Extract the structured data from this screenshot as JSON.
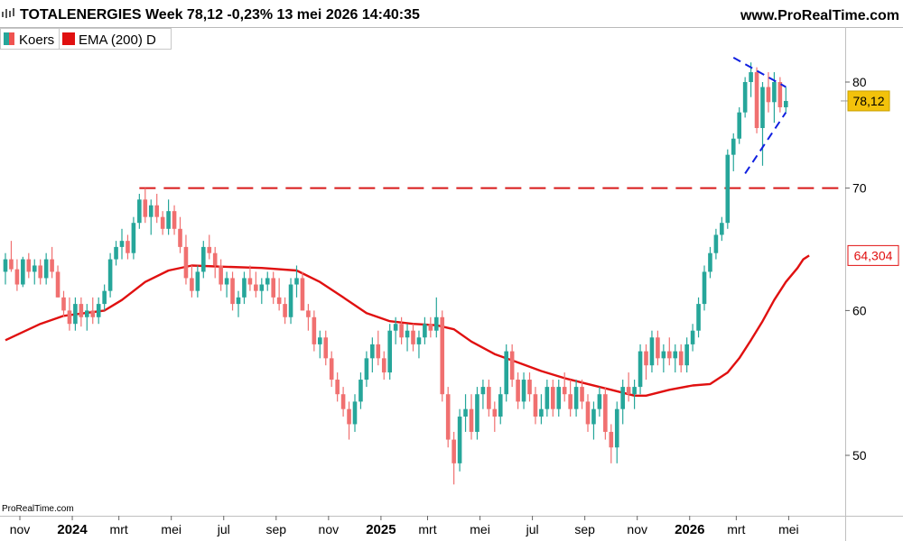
{
  "header": {
    "title": "TOTALENERGIES Week 78,12 -0,23% 13 mei 2026 14:40:35",
    "site": "www.ProRealTime.com"
  },
  "watermark": "ProRealTime.com",
  "legend": [
    {
      "label": "Koers",
      "color_up": "#26a69a",
      "color_down": "#ef5350"
    },
    {
      "label": "EMA (200) D",
      "color": "#e01010"
    }
  ],
  "colors": {
    "up": "#26a69a",
    "down": "#f07070",
    "ema": "#e01010",
    "resistance": "#d81818",
    "trendline": "#1020e0",
    "price_badge_bg": "#f3c20b",
    "ema_badge_border": "#e01010"
  },
  "chart_data": {
    "type": "candlestick",
    "y_scale": "log",
    "ylim": [
      46.5,
      88
    ],
    "yticks": [
      "80",
      "70",
      "60",
      "50"
    ],
    "ytick_values": [
      80,
      70,
      60,
      50
    ],
    "xticks": [
      {
        "label": "nov",
        "bold": false,
        "index": 0
      },
      {
        "label": "2024",
        "bold": true,
        "index": 9
      },
      {
        "label": "mrt",
        "bold": false,
        "index": 17
      },
      {
        "label": "mei",
        "bold": false,
        "index": 26
      },
      {
        "label": "jul",
        "bold": false,
        "index": 35
      },
      {
        "label": "sep",
        "bold": false,
        "index": 44
      },
      {
        "label": "nov",
        "bold": false,
        "index": 53
      },
      {
        "label": "2025",
        "bold": true,
        "index": 62
      },
      {
        "label": "mrt",
        "bold": false,
        "index": 70
      },
      {
        "label": "mei",
        "bold": false,
        "index": 79
      },
      {
        "label": "jul",
        "bold": false,
        "index": 88
      },
      {
        "label": "sep",
        "bold": false,
        "index": 97
      },
      {
        "label": "nov",
        "bold": false,
        "index": 106
      },
      {
        "label": "2026",
        "bold": true,
        "index": 115
      },
      {
        "label": "mrt",
        "bold": false,
        "index": 123
      },
      {
        "label": "mei",
        "bold": false,
        "index": 132
      }
    ],
    "last_price": "78,12",
    "last_price_value": 78.12,
    "ema_last": "64,304",
    "ema_last_value": 64.304,
    "resistance_level": 70,
    "resistance_start_index": 23,
    "triangle": {
      "upper": [
        [
          125,
          82.5
        ],
        [
          134,
          79.5
        ]
      ],
      "lower": [
        [
          127,
          71.3
        ],
        [
          134,
          77.0
        ]
      ]
    },
    "candles": [
      [
        63.0,
        64.5,
        62.0,
        64.0
      ],
      [
        64.0,
        65.5,
        63.0,
        63.2
      ],
      [
        63.2,
        64.0,
        61.5,
        62.0
      ],
      [
        62.0,
        64.2,
        61.8,
        64.0
      ],
      [
        64.0,
        64.5,
        62.5,
        63.0
      ],
      [
        63.0,
        64.0,
        62.0,
        63.5
      ],
      [
        63.5,
        64.0,
        62.0,
        62.5
      ],
      [
        62.5,
        64.5,
        62.0,
        64.0
      ],
      [
        64.0,
        65.0,
        62.5,
        63.0
      ],
      [
        63.0,
        63.5,
        61.0,
        61.0
      ],
      [
        61.0,
        61.5,
        59.5,
        60.0
      ],
      [
        60.0,
        61.0,
        58.5,
        59.0
      ],
      [
        59.0,
        61.0,
        58.5,
        60.5
      ],
      [
        60.5,
        61.0,
        58.8,
        59.5
      ],
      [
        59.5,
        60.5,
        58.5,
        60.0
      ],
      [
        60.0,
        61.0,
        59.0,
        59.5
      ],
      [
        59.5,
        61.0,
        59.0,
        60.5
      ],
      [
        60.5,
        62.0,
        60.0,
        61.5
      ],
      [
        61.5,
        64.5,
        61.0,
        64.0
      ],
      [
        64.0,
        65.5,
        63.5,
        65.0
      ],
      [
        65.0,
        66.5,
        64.0,
        65.5
      ],
      [
        65.5,
        66.0,
        64.0,
        64.5
      ],
      [
        64.5,
        67.5,
        64.0,
        67.0
      ],
      [
        67.0,
        69.5,
        66.5,
        69.0
      ],
      [
        69.0,
        70.0,
        67.0,
        67.5
      ],
      [
        67.5,
        69.0,
        66.0,
        68.5
      ],
      [
        68.5,
        69.5,
        67.0,
        67.5
      ],
      [
        67.5,
        68.0,
        66.0,
        66.5
      ],
      [
        66.5,
        69.0,
        66.0,
        68.0
      ],
      [
        68.0,
        68.5,
        66.0,
        66.5
      ],
      [
        66.5,
        67.5,
        64.5,
        65.0
      ],
      [
        65.0,
        66.0,
        62.0,
        62.5
      ],
      [
        62.5,
        63.5,
        61.0,
        61.5
      ],
      [
        61.5,
        63.5,
        61.0,
        63.0
      ],
      [
        63.0,
        65.5,
        62.5,
        65.0
      ],
      [
        65.0,
        66.0,
        64.0,
        64.5
      ],
      [
        64.5,
        65.0,
        62.5,
        63.5
      ],
      [
        63.5,
        64.0,
        61.5,
        62.0
      ],
      [
        62.0,
        63.0,
        61.0,
        62.5
      ],
      [
        62.5,
        63.0,
        60.0,
        60.5
      ],
      [
        60.5,
        61.5,
        59.5,
        61.0
      ],
      [
        61.0,
        63.0,
        60.5,
        62.5
      ],
      [
        62.5,
        63.5,
        61.5,
        62.0
      ],
      [
        62.0,
        63.0,
        61.0,
        61.5
      ],
      [
        61.5,
        62.5,
        60.5,
        62.0
      ],
      [
        62.0,
        63.0,
        61.5,
        62.5
      ],
      [
        62.5,
        63.0,
        60.5,
        61.0
      ],
      [
        61.0,
        62.5,
        60.0,
        60.5
      ],
      [
        60.5,
        61.0,
        59.0,
        59.5
      ],
      [
        59.5,
        62.5,
        59.0,
        62.0
      ],
      [
        62.0,
        63.5,
        61.0,
        62.5
      ],
      [
        62.5,
        63.0,
        60.0,
        60.0
      ],
      [
        60.0,
        60.5,
        58.5,
        59.5
      ],
      [
        59.5,
        60.0,
        57.0,
        57.5
      ],
      [
        57.5,
        58.5,
        56.5,
        58.0
      ],
      [
        58.0,
        58.5,
        56.0,
        56.5
      ],
      [
        56.5,
        57.0,
        54.5,
        55.0
      ],
      [
        55.0,
        55.5,
        53.5,
        54.0
      ],
      [
        54.0,
        54.5,
        52.5,
        53.0
      ],
      [
        53.0,
        53.5,
        51.0,
        52.0
      ],
      [
        52.0,
        54.0,
        51.5,
        53.5
      ],
      [
        53.5,
        55.5,
        53.0,
        55.0
      ],
      [
        55.0,
        57.0,
        54.5,
        56.5
      ],
      [
        56.5,
        58.0,
        55.5,
        57.5
      ],
      [
        57.5,
        58.5,
        56.0,
        56.5
      ],
      [
        56.5,
        57.0,
        55.0,
        55.5
      ],
      [
        55.5,
        59.0,
        55.0,
        58.5
      ],
      [
        58.5,
        59.5,
        57.5,
        59.0
      ],
      [
        59.0,
        59.5,
        57.5,
        58.0
      ],
      [
        58.0,
        59.0,
        57.0,
        58.5
      ],
      [
        58.5,
        59.0,
        57.0,
        57.5
      ],
      [
        57.5,
        58.5,
        56.5,
        58.0
      ],
      [
        58.0,
        59.5,
        57.5,
        59.0
      ],
      [
        59.0,
        59.5,
        58.0,
        58.5
      ],
      [
        58.5,
        61.0,
        58.0,
        59.5
      ],
      [
        59.5,
        60.0,
        53.5,
        54.0
      ],
      [
        54.0,
        54.5,
        50.5,
        51.0
      ],
      [
        51.0,
        51.5,
        48.2,
        49.5
      ],
      [
        49.5,
        53.0,
        49.0,
        52.5
      ],
      [
        52.5,
        54.0,
        51.5,
        53.0
      ],
      [
        53.0,
        54.0,
        51.0,
        51.5
      ],
      [
        51.5,
        54.5,
        51.0,
        54.0
      ],
      [
        54.0,
        55.0,
        53.0,
        54.5
      ],
      [
        54.5,
        55.0,
        52.5,
        53.0
      ],
      [
        53.0,
        53.5,
        51.5,
        52.5
      ],
      [
        52.5,
        54.5,
        52.0,
        54.0
      ],
      [
        54.0,
        57.5,
        53.5,
        57.0
      ],
      [
        57.0,
        57.5,
        54.5,
        55.0
      ],
      [
        55.0,
        55.5,
        53.0,
        53.5
      ],
      [
        53.5,
        55.5,
        53.0,
        55.0
      ],
      [
        55.0,
        55.5,
        53.5,
        54.0
      ],
      [
        54.0,
        54.5,
        52.0,
        52.5
      ],
      [
        52.5,
        54.0,
        52.0,
        53.0
      ],
      [
        53.0,
        55.0,
        52.5,
        54.5
      ],
      [
        54.5,
        55.0,
        52.5,
        53.0
      ],
      [
        53.0,
        55.0,
        52.5,
        54.5
      ],
      [
        54.5,
        55.5,
        53.5,
        54.0
      ],
      [
        54.0,
        55.0,
        52.5,
        53.0
      ],
      [
        53.0,
        55.0,
        52.5,
        54.5
      ],
      [
        54.5,
        55.0,
        53.0,
        53.5
      ],
      [
        53.5,
        54.0,
        51.5,
        52.0
      ],
      [
        52.0,
        53.5,
        51.0,
        53.0
      ],
      [
        53.0,
        54.5,
        52.5,
        54.0
      ],
      [
        54.0,
        54.5,
        51.0,
        51.5
      ],
      [
        51.5,
        52.0,
        49.5,
        50.5
      ],
      [
        50.5,
        53.5,
        49.5,
        53.0
      ],
      [
        53.0,
        55.0,
        52.0,
        54.5
      ],
      [
        54.5,
        55.5,
        53.5,
        54.0
      ],
      [
        54.0,
        55.0,
        53.0,
        54.5
      ],
      [
        54.5,
        57.5,
        54.0,
        57.0
      ],
      [
        57.0,
        57.5,
        55.0,
        56.0
      ],
      [
        56.0,
        58.5,
        55.5,
        58.0
      ],
      [
        58.0,
        58.5,
        56.0,
        56.5
      ],
      [
        56.5,
        57.5,
        55.5,
        57.0
      ],
      [
        57.0,
        58.0,
        56.0,
        56.5
      ],
      [
        56.5,
        57.5,
        55.5,
        57.0
      ],
      [
        57.0,
        57.5,
        55.5,
        56.0
      ],
      [
        56.0,
        58.0,
        55.5,
        57.5
      ],
      [
        57.5,
        59.0,
        57.0,
        58.5
      ],
      [
        58.5,
        61.0,
        58.0,
        60.5
      ],
      [
        60.5,
        63.5,
        60.0,
        63.0
      ],
      [
        63.0,
        65.0,
        62.5,
        64.5
      ],
      [
        64.5,
        66.5,
        64.0,
        66.0
      ],
      [
        66.0,
        67.5,
        65.5,
        67.0
      ],
      [
        67.0,
        73.5,
        66.5,
        73.0
      ],
      [
        73.0,
        75.0,
        71.5,
        74.5
      ],
      [
        74.5,
        77.5,
        74.0,
        77.0
      ],
      [
        77.0,
        80.5,
        76.5,
        80.0
      ],
      [
        80.0,
        82.0,
        78.5,
        81.0
      ],
      [
        81.0,
        81.5,
        75.0,
        75.5
      ],
      [
        75.5,
        80.0,
        72.0,
        79.5
      ],
      [
        79.5,
        81.0,
        77.0,
        78.0
      ],
      [
        78.0,
        81.0,
        76.0,
        80.0
      ],
      [
        80.0,
        80.5,
        77.0,
        77.5
      ],
      [
        77.5,
        79.5,
        77.0,
        78.12
      ]
    ],
    "ema": [
      [
        0,
        57.8
      ],
      [
        6,
        59.0
      ],
      [
        10,
        59.6
      ],
      [
        17,
        60.0
      ],
      [
        20,
        60.8
      ],
      [
        24,
        62.2
      ],
      [
        28,
        63.1
      ],
      [
        32,
        63.5
      ],
      [
        38,
        63.4
      ],
      [
        44,
        63.3
      ],
      [
        50,
        63.1
      ],
      [
        54,
        62.2
      ],
      [
        58,
        61.0
      ],
      [
        62,
        59.8
      ],
      [
        66,
        59.2
      ],
      [
        70,
        59.0
      ],
      [
        74,
        58.9
      ],
      [
        77,
        58.6
      ],
      [
        80,
        57.7
      ],
      [
        84,
        56.8
      ],
      [
        88,
        56.2
      ],
      [
        92,
        55.6
      ],
      [
        96,
        55.1
      ],
      [
        100,
        54.7
      ],
      [
        104,
        54.3
      ],
      [
        108,
        53.9
      ],
      [
        110,
        53.9
      ],
      [
        114,
        54.3
      ],
      [
        118,
        54.6
      ],
      [
        121,
        54.7
      ],
      [
        124,
        55.5
      ],
      [
        126,
        56.5
      ],
      [
        128,
        57.8
      ],
      [
        130,
        59.2
      ],
      [
        132,
        60.8
      ],
      [
        134,
        62.2
      ],
      [
        136,
        63.3
      ],
      [
        137,
        64.0
      ],
      [
        138,
        64.304
      ]
    ]
  }
}
